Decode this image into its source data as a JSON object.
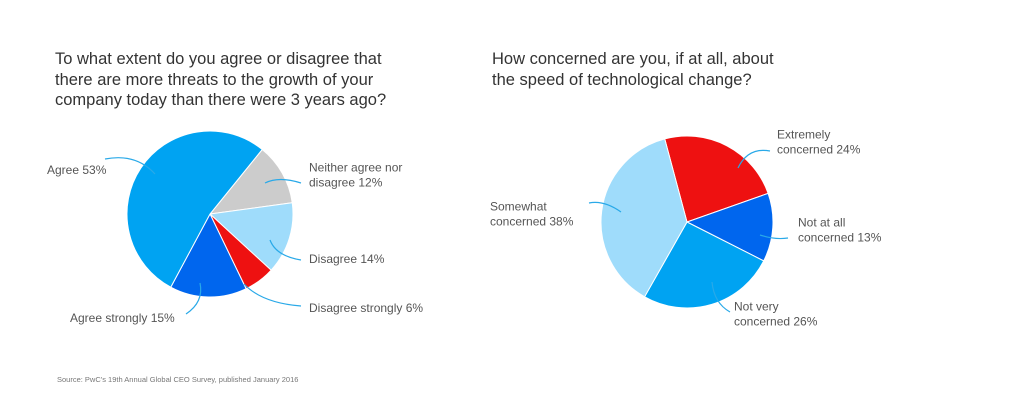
{
  "chart_data": [
    {
      "type": "pie",
      "title_lines": [
        "To what extent do you agree or disagree that",
        "there are more threats to the growth of your",
        "company today than there were 3 years ago?"
      ],
      "slices": [
        {
          "label_lines": [
            "Neither agree nor",
            "disagree 12%"
          ],
          "value": 12,
          "color": "#cccccc"
        },
        {
          "label_lines": [
            "Disagree 14%"
          ],
          "value": 14,
          "color": "#9fdcfb"
        },
        {
          "label_lines": [
            "Disagree strongly 6%"
          ],
          "value": 6,
          "color": "#ee1111"
        },
        {
          "label_lines": [
            "Agree strongly 15%"
          ],
          "value": 15,
          "color": "#0066ee"
        },
        {
          "label_lines": [
            "Agree 53%"
          ],
          "value": 53,
          "color": "#00a3f2"
        }
      ]
    },
    {
      "type": "pie",
      "title_lines": [
        "How concerned are you, if at all, about",
        "the speed of technological change?"
      ],
      "slices": [
        {
          "label_lines": [
            "Extremely",
            "concerned 24%"
          ],
          "value": 24,
          "color": "#ee1111"
        },
        {
          "label_lines": [
            "Not at all",
            "concerned 13%"
          ],
          "value": 13,
          "color": "#0066ee"
        },
        {
          "label_lines": [
            "Not very",
            "concerned 26%"
          ],
          "value": 26,
          "color": "#00a3f2"
        },
        {
          "label_lines": [
            "Somewhat",
            "concerned 38%"
          ],
          "value": 38,
          "color": "#9fdcfb"
        }
      ]
    }
  ],
  "source_note": "Source: PwC's 19th Annual Global CEO Survey, published January 2016"
}
